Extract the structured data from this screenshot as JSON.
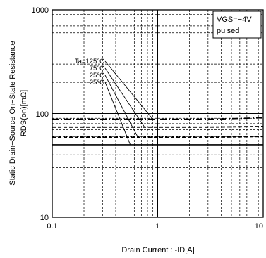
{
  "chart_data": {
    "type": "line",
    "x_scale": "log",
    "y_scale": "log",
    "xlim": [
      0.1,
      10
    ],
    "ylim": [
      10,
      1000
    ],
    "x_ticks": [
      "0.1",
      "1",
      "10"
    ],
    "y_ticks": [
      "10",
      "100",
      "1000"
    ],
    "xlabel": "Drain Current : -ID[A]",
    "ylabel_line1": "Static Drain−Source On−State Resistance",
    "ylabel_line2": "RDS(on)[mΩ]",
    "condition_line1": "VGS=−4V",
    "condition_line2": "pulsed",
    "grid": true,
    "series": [
      {
        "name": "Ta=125°C",
        "style": "dash-dot",
        "x": [
          0.1,
          1,
          3,
          10
        ],
        "y": [
          88,
          88,
          88,
          91
        ]
      },
      {
        "name": "75°C",
        "style": "dashed",
        "x": [
          0.1,
          1,
          3,
          10
        ],
        "y": [
          74,
          74,
          74,
          75
        ]
      },
      {
        "name": "25°C",
        "style": "dashed",
        "x": [
          0.1,
          1,
          3,
          10
        ],
        "y": [
          59,
          59,
          59,
          60
        ]
      },
      {
        "name": "−25°C",
        "style": "solid",
        "x": [
          0.1,
          1,
          3,
          10
        ],
        "y": [
          50,
          50,
          50,
          50
        ]
      }
    ],
    "annotation_labels": [
      "Ta=125°C",
      "75°C",
      "25°C",
      "−25°C"
    ]
  }
}
